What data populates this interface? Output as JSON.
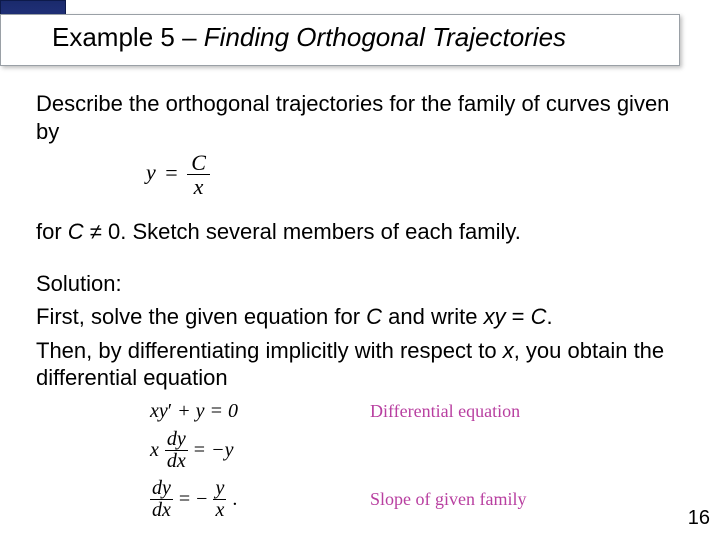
{
  "title": {
    "example_label": "Example",
    "number": "5",
    "dash": "–",
    "topic": "Finding Orthogonal Trajectories"
  },
  "body": {
    "intro": "Describe the orthogonal trajectories for the family of curves given by",
    "condition": "for C ≠ 0. Sketch several members of each family.",
    "solution_label": "Solution:",
    "solution_text1": "First, solve the given equation for C and write xy = C.",
    "solution_text2": "Then, by differentiating implicitly with respect to x, you obtain the differential equation"
  },
  "equations": {
    "main_family": {
      "lhs": "y",
      "eq": "=",
      "num": "C",
      "den": "x"
    },
    "row1": {
      "expr_left": "xy",
      "prime": "′",
      "plus_y": " + y = 0",
      "annot": "Differential equation"
    },
    "row2": {
      "x": "x",
      "dy": "dy",
      "dx": "dx",
      "eq": " = ",
      "rhs": "−y"
    },
    "row3": {
      "dy": "dy",
      "dx": "dx",
      "eq": " = ",
      "neg": "−",
      "num": "y",
      "den": "x",
      "dot": ".",
      "annot": "Slope of given family"
    }
  },
  "colors": {
    "annotation": "#b83fa0"
  },
  "page_number": "16"
}
